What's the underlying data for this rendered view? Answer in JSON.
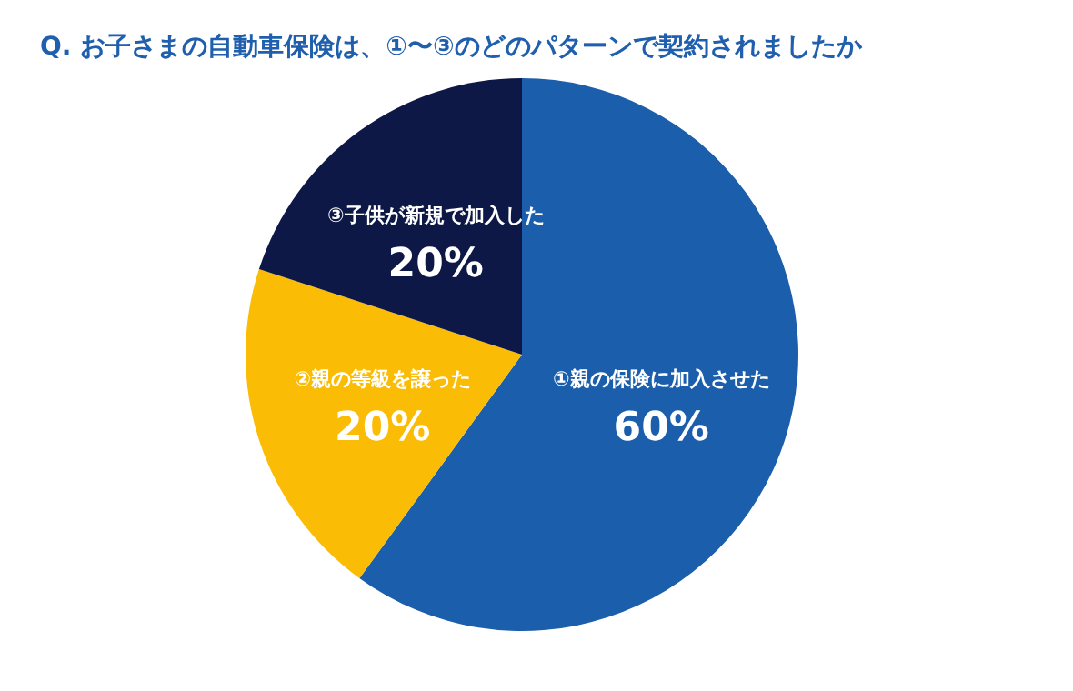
{
  "chart_data": {
    "type": "pie",
    "title": "Q. お子さまの自動車保険は、①〜③のどのパターンで契約されましたか",
    "categories": [
      "①親の保険に加入させた",
      "②親の等級を譲った",
      "③子供が新規で加入した"
    ],
    "values": [
      60,
      20,
      20
    ],
    "colors": [
      "#1b5eab",
      "#fbbc05",
      "#0d1846"
    ],
    "value_labels": [
      "60%",
      "20%",
      "20%"
    ]
  }
}
